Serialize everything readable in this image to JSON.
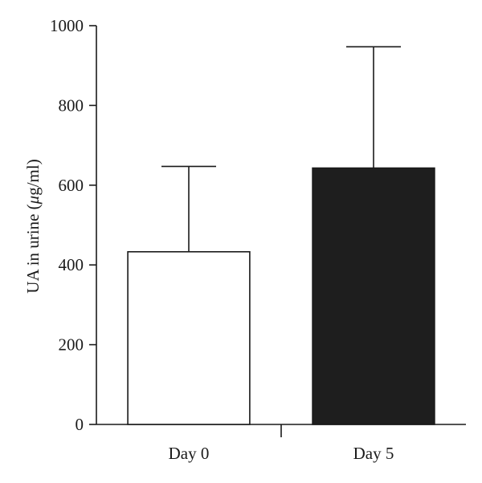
{
  "chart_data": {
    "type": "bar",
    "categories": [
      "Day 0",
      "Day 5"
    ],
    "series": [
      {
        "values": [
          433,
          643
        ],
        "error_upper": [
          647,
          947
        ],
        "fill_colors": [
          "#ffffff",
          "#1e1e1e"
        ]
      }
    ],
    "ylabel_prefix": "UA in urine (",
    "ylabel_mu": "μ",
    "ylabel_suffix": "g/ml)",
    "ylim": [
      0,
      1000
    ],
    "yticks": [
      "0",
      "200",
      "400",
      "600",
      "800",
      "1000"
    ],
    "grid": false
  }
}
